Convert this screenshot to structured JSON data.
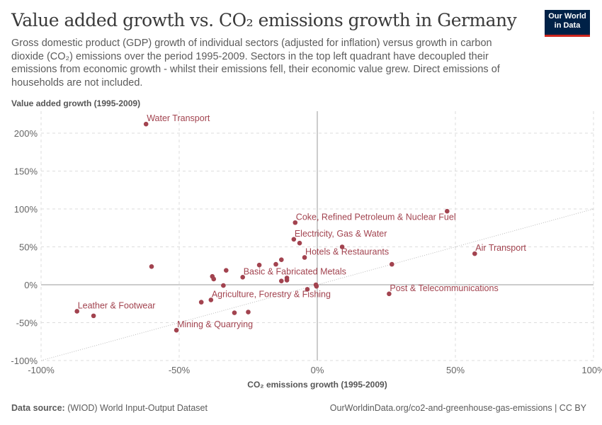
{
  "title": "Value added growth vs. CO₂ emissions growth in Germany",
  "subtitle": "Gross domestic product (GDP) growth of individual sectors (adjusted for inflation) versus growth in carbon dioxide (CO₂) emissions over the period 1995-2009. Sectors in the top left quadrant have decoupled their emissions from economic growth - whilst their emissions fell, their economic value grew. Direct emissions of households are not included.",
  "logo": "Our World in Data",
  "footer": {
    "source_label": "Data source:",
    "source": "(WIOD) World Input-Output Dataset",
    "url": "OurWorldinData.org/co2-and-greenhouse-gas-emissions | CC BY"
  },
  "chart_data": {
    "type": "scatter",
    "xlabel": "CO₂ emissions growth (1995-2009)",
    "ylabel": "Value added growth (1995-2009)",
    "xlim": [
      -100,
      100
    ],
    "ylim": [
      -100,
      215
    ],
    "xticks": [
      -100,
      -50,
      0,
      50,
      100
    ],
    "xtick_labels": [
      "-100%",
      "-50%",
      "0%",
      "50%",
      "100%"
    ],
    "yticks": [
      -100,
      -50,
      0,
      50,
      100,
      150,
      200
    ],
    "ytick_labels": [
      "-100%",
      "-50%",
      "0%",
      "50%",
      "100%",
      "150%",
      "200%"
    ],
    "grid": true,
    "reference_line": "y = x",
    "color": "#a2434f",
    "points": [
      {
        "x": -62,
        "y": 212,
        "label": "Water Transport"
      },
      {
        "x": -8,
        "y": 82,
        "label": "Coke, Refined Petroleum & Nuclear Fuel"
      },
      {
        "x": 47,
        "y": 97
      },
      {
        "x": -8.5,
        "y": 60,
        "label": "Electricity, Gas & Water"
      },
      {
        "x": -6.4,
        "y": 55
      },
      {
        "x": 9,
        "y": 50
      },
      {
        "x": -4.6,
        "y": 36,
        "label": "Hotels & Restaurants"
      },
      {
        "x": 57,
        "y": 41,
        "label": "Air Transport"
      },
      {
        "x": 27,
        "y": 27
      },
      {
        "x": -60,
        "y": 24
      },
      {
        "x": -21,
        "y": 26
      },
      {
        "x": -15,
        "y": 27
      },
      {
        "x": -13,
        "y": 33
      },
      {
        "x": -33,
        "y": 19
      },
      {
        "x": -27,
        "y": 10,
        "label": "Basic & Fabricated Metals"
      },
      {
        "x": -38,
        "y": 11
      },
      {
        "x": -37.5,
        "y": 7.5
      },
      {
        "x": -13,
        "y": 5
      },
      {
        "x": -11,
        "y": 6
      },
      {
        "x": -11,
        "y": 9
      },
      {
        "x": -34,
        "y": -1
      },
      {
        "x": -0.5,
        "y": 0
      },
      {
        "x": -0.3,
        "y": -2
      },
      {
        "x": -3.6,
        "y": -6
      },
      {
        "x": 26,
        "y": -12,
        "label": "Post & Telecommunications"
      },
      {
        "x": -38.5,
        "y": -20,
        "label": "Agriculture, Forestry & Fishing"
      },
      {
        "x": -42,
        "y": -23
      },
      {
        "x": -87,
        "y": -35,
        "label": "Leather & Footwear"
      },
      {
        "x": -81,
        "y": -41
      },
      {
        "x": -30,
        "y": -37
      },
      {
        "x": -25,
        "y": -36
      },
      {
        "x": -51,
        "y": -60,
        "label": "Mining & Quarrying"
      }
    ]
  }
}
